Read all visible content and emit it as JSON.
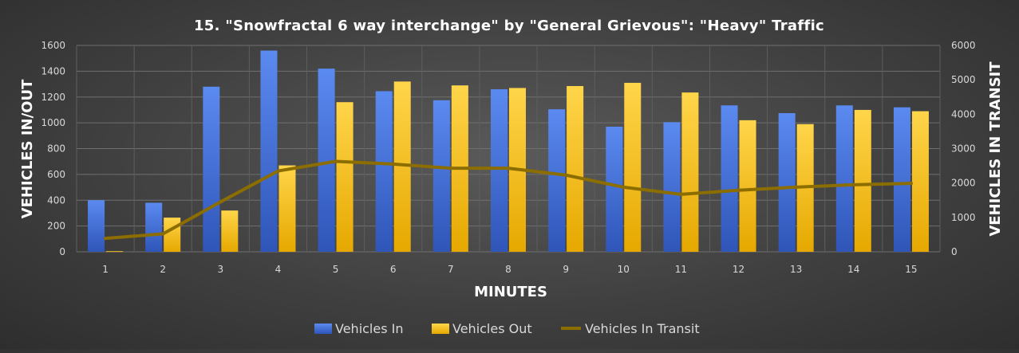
{
  "chart_data": {
    "type": "bar",
    "title": "15. \"Snowfractal 6 way interchange\" by \"General Grievous\": \"Heavy\" Traffic",
    "xlabel": "MINUTES",
    "ylabel": "VEHICLES IN/OUT",
    "y2label": "VEHICLES IN TRANSIT",
    "categories": [
      "1",
      "2",
      "3",
      "4",
      "5",
      "6",
      "7",
      "8",
      "9",
      "10",
      "11",
      "12",
      "13",
      "14",
      "15"
    ],
    "ylim": [
      0,
      1600
    ],
    "y2lim": [
      0,
      6000
    ],
    "yticks": [
      "0",
      "200",
      "400",
      "600",
      "800",
      "1000",
      "1200",
      "1400",
      "1600"
    ],
    "y2ticks": [
      "0",
      "1000",
      "2000",
      "3000",
      "4000",
      "5000",
      "6000"
    ],
    "grid": true,
    "legend_position": "bottom",
    "series": [
      {
        "name": "Vehicles In",
        "type": "bar",
        "axis": "left",
        "color": "#4a78d8",
        "values": [
          400,
          380,
          1280,
          1560,
          1420,
          1245,
          1175,
          1260,
          1105,
          970,
          1005,
          1135,
          1075,
          1135,
          1120
        ]
      },
      {
        "name": "Vehicles Out",
        "type": "bar",
        "axis": "left",
        "color": "#ffc000",
        "values": [
          5,
          265,
          320,
          670,
          1160,
          1320,
          1290,
          1270,
          1285,
          1310,
          1235,
          1020,
          990,
          1100,
          1090
        ]
      },
      {
        "name": "Vehicles In Transit",
        "type": "line",
        "axis": "right",
        "color": "#8b6d00",
        "values": [
          390,
          520,
          1450,
          2350,
          2630,
          2550,
          2430,
          2430,
          2230,
          1880,
          1670,
          1790,
          1880,
          1950,
          1990
        ]
      }
    ]
  }
}
